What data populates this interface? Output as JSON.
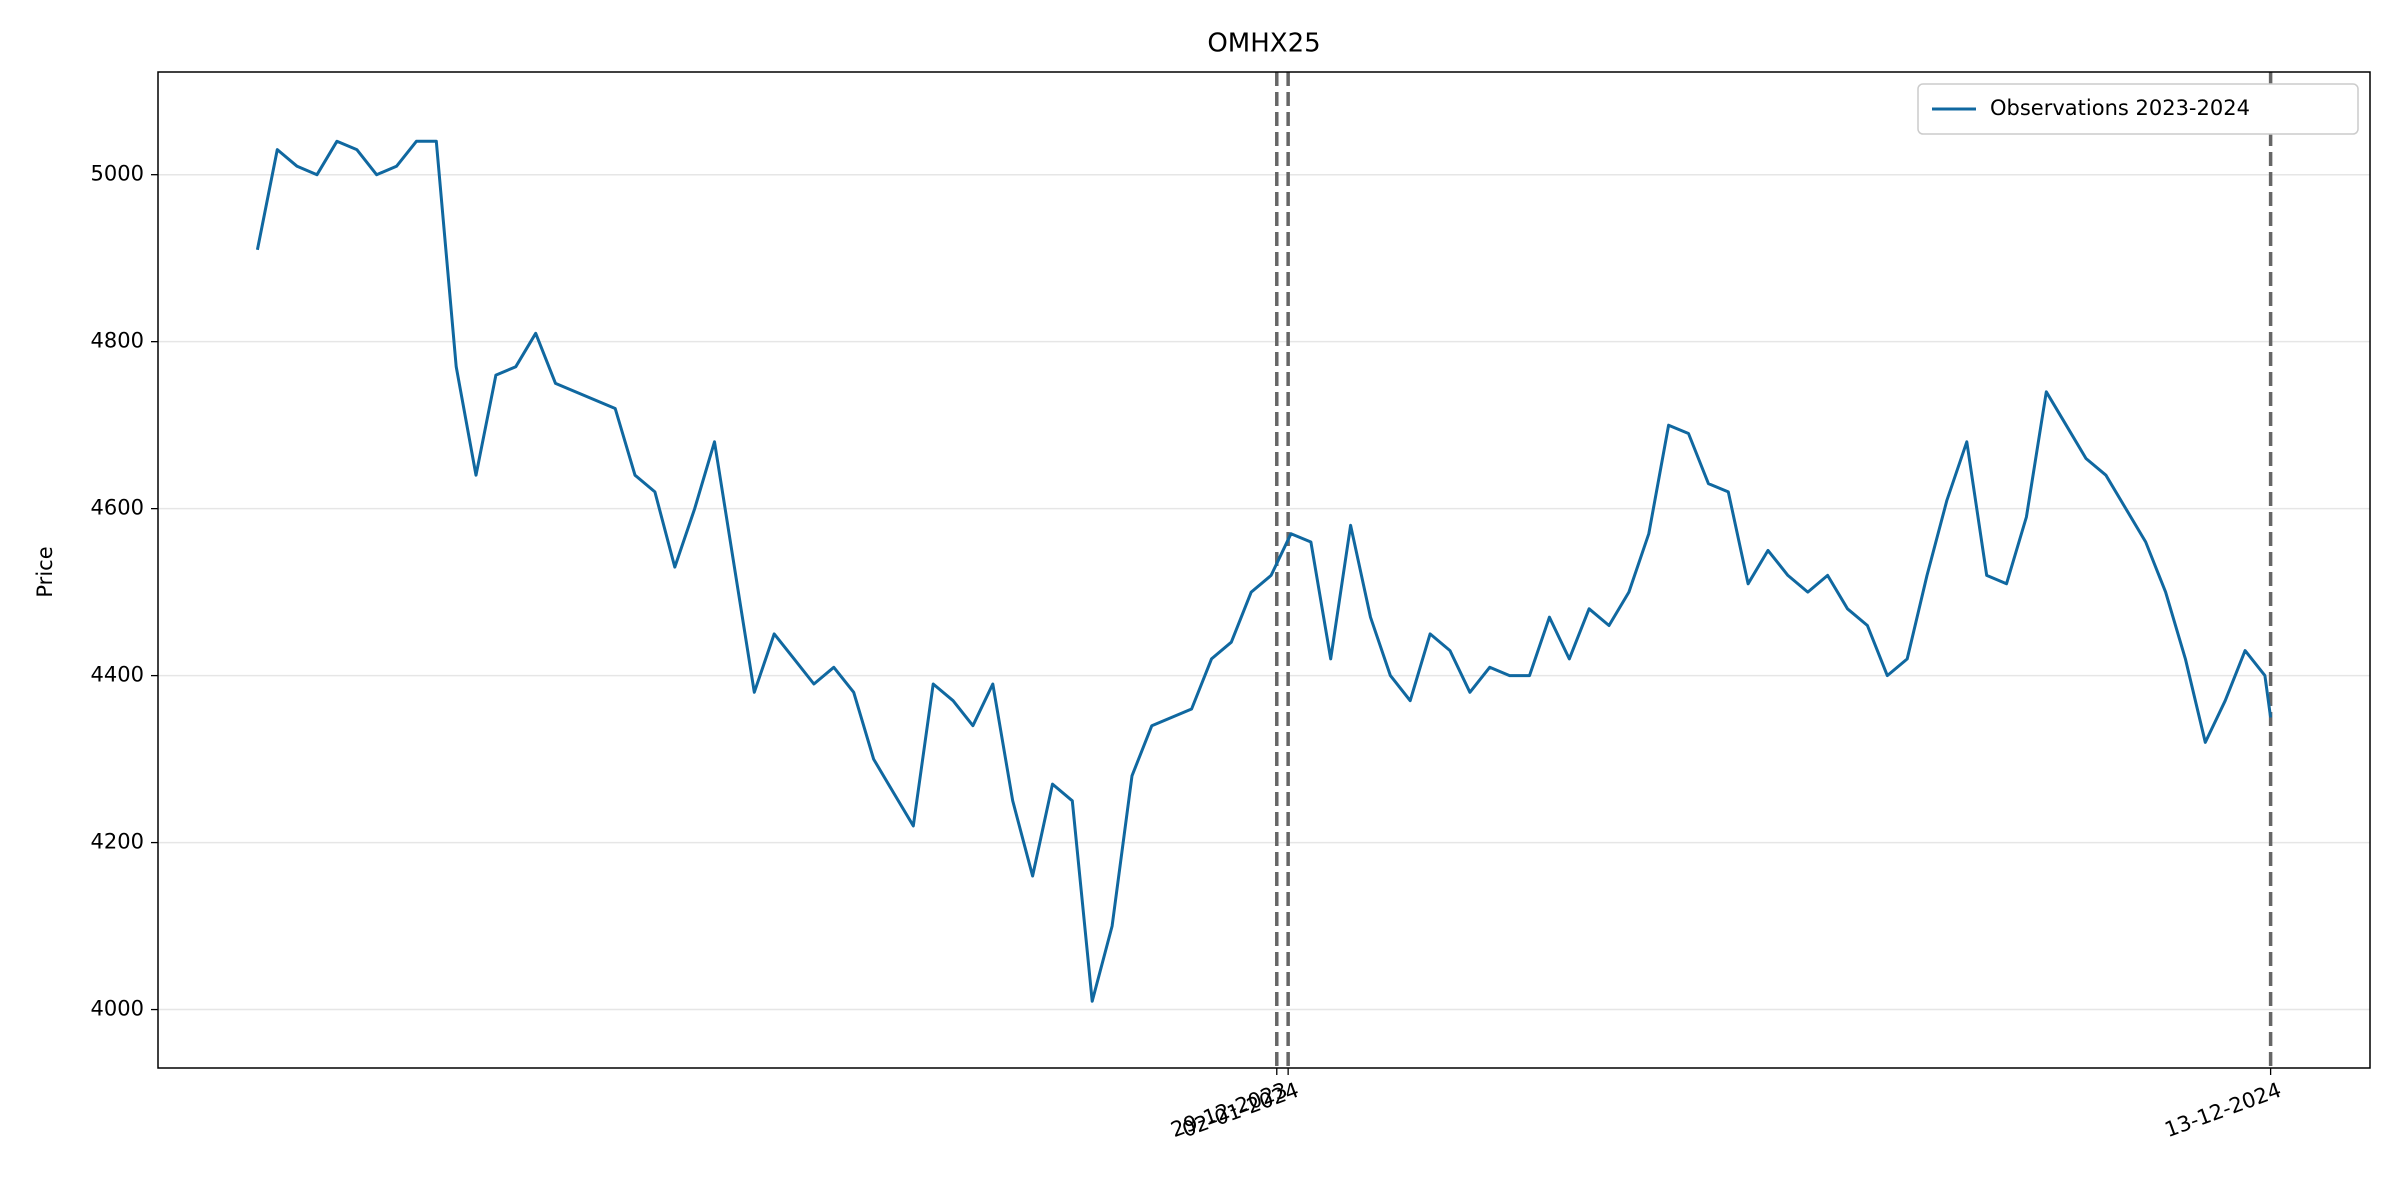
{
  "chart_data": {
    "type": "line",
    "title": "OMHX25",
    "y_label": "Price",
    "x": [
      "04-01-2023",
      "11-01-2023",
      "18-01-2023",
      "25-01-2023",
      "01-02-2023",
      "08-02-2023",
      "15-02-2023",
      "22-02-2023",
      "01-03-2023",
      "08-03-2023",
      "15-03-2023",
      "22-03-2023",
      "29-03-2023",
      "05-04-2023",
      "12-04-2023",
      "19-04-2023",
      "26-04-2023",
      "03-05-2023",
      "10-05-2023",
      "17-05-2023",
      "24-05-2023",
      "31-05-2023",
      "07-06-2023",
      "14-06-2023",
      "21-06-2023",
      "28-06-2023",
      "05-07-2023",
      "12-07-2023",
      "19-07-2023",
      "26-07-2023",
      "02-08-2023",
      "09-08-2023",
      "16-08-2023",
      "23-08-2023",
      "30-08-2023",
      "06-09-2023",
      "13-09-2023",
      "20-09-2023",
      "27-09-2023",
      "04-10-2023",
      "11-10-2023",
      "18-10-2023",
      "25-10-2023",
      "01-11-2023",
      "08-11-2023",
      "15-11-2023",
      "22-11-2023",
      "29-11-2023",
      "06-12-2023",
      "13-12-2023",
      "20-12-2023",
      "27-12-2023",
      "03-01-2024",
      "10-01-2024",
      "17-01-2024",
      "24-01-2024",
      "31-01-2024",
      "07-02-2024",
      "14-02-2024",
      "21-02-2024",
      "28-02-2024",
      "06-03-2024",
      "13-03-2024",
      "20-03-2024",
      "27-03-2024",
      "03-04-2024",
      "10-04-2024",
      "17-04-2024",
      "24-04-2024",
      "01-05-2024",
      "08-05-2024",
      "15-05-2024",
      "22-05-2024",
      "29-05-2024",
      "05-06-2024",
      "12-06-2024",
      "19-06-2024",
      "26-06-2024",
      "03-07-2024",
      "10-07-2024",
      "17-07-2024",
      "24-07-2024",
      "31-07-2024",
      "07-08-2024",
      "14-08-2024",
      "21-08-2024",
      "28-08-2024",
      "04-09-2024",
      "11-09-2024",
      "18-09-2024",
      "25-09-2024",
      "02-10-2024",
      "09-10-2024",
      "16-10-2024",
      "23-10-2024",
      "30-10-2024",
      "06-11-2024",
      "13-11-2024",
      "20-11-2024",
      "27-11-2024",
      "04-12-2024",
      "11-12-2024",
      "13-12-2024"
    ],
    "series": [
      {
        "name": "Observations 2023-2024",
        "color": "#1068a0",
        "values": [
          4910,
          5030,
          5010,
          5000,
          5040,
          5030,
          5000,
          5010,
          5040,
          5040,
          4770,
          4640,
          4760,
          4770,
          4810,
          4750,
          4740,
          4730,
          4720,
          4640,
          4620,
          4530,
          4600,
          4680,
          4530,
          4380,
          4450,
          4420,
          4390,
          4410,
          4380,
          4300,
          4260,
          4220,
          4390,
          4370,
          4340,
          4390,
          4250,
          4160,
          4270,
          4250,
          4010,
          4100,
          4280,
          4340,
          4350,
          4360,
          4420,
          4440,
          4500,
          4520,
          4570,
          4560,
          4420,
          4580,
          4470,
          4400,
          4370,
          4450,
          4430,
          4380,
          4410,
          4400,
          4400,
          4470,
          4420,
          4480,
          4460,
          4500,
          4570,
          4700,
          4690,
          4630,
          4620,
          4510,
          4550,
          4520,
          4500,
          4520,
          4480,
          4460,
          4400,
          4420,
          4520,
          4610,
          4680,
          4520,
          4510,
          4590,
          4740,
          4700,
          4660,
          4640,
          4600,
          4560,
          4500,
          4420,
          4320,
          4370,
          4430,
          4400,
          4350
        ]
      }
    ],
    "xlim": [
      "30-11-2022",
      "17-01-2025"
    ],
    "xticks": [
      "29-12-2023",
      "02-01-2024",
      "13-12-2024"
    ],
    "ylim": [
      3930,
      5123
    ],
    "yticks": [
      4000,
      4200,
      4400,
      4600,
      4800,
      5000
    ],
    "grid": true,
    "tick_lines": "dashed",
    "legend": "upper right"
  }
}
